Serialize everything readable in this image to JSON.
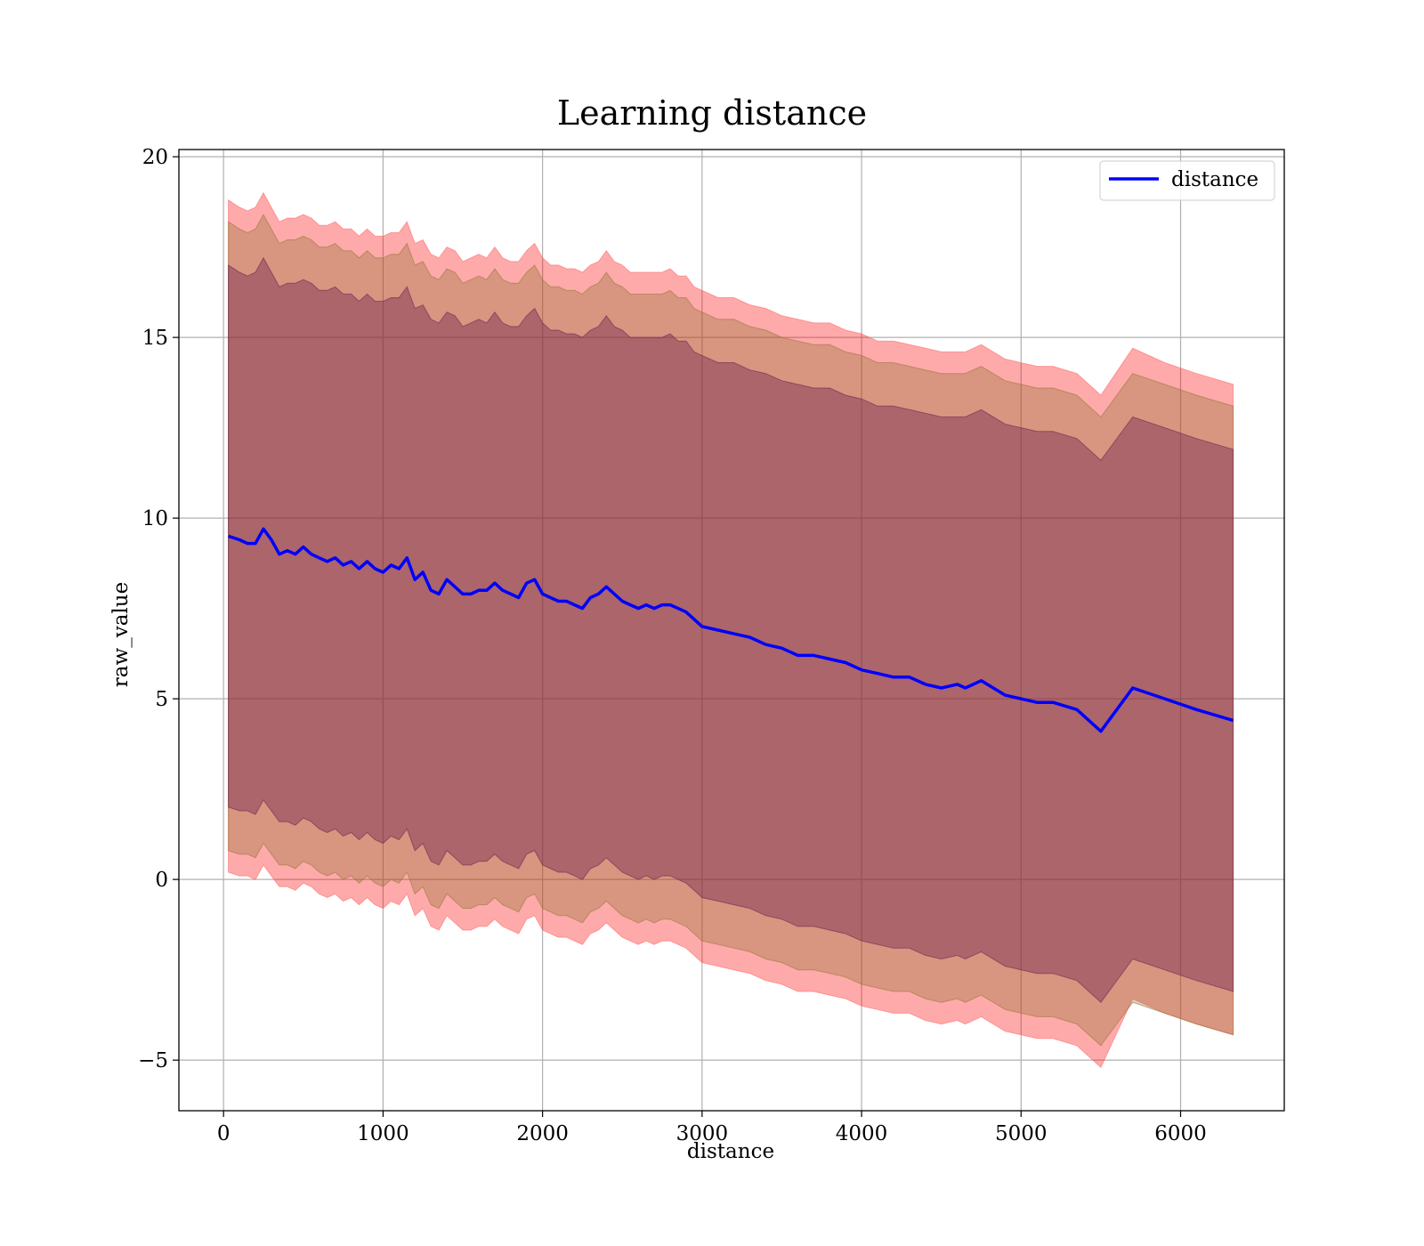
{
  "chart_data": {
    "type": "line",
    "title": "Learning distance",
    "xlabel": "distance",
    "ylabel": "raw_value",
    "xlim": [
      -280,
      6650
    ],
    "ylim": [
      -6.4,
      20.2
    ],
    "xticks": [
      0,
      1000,
      2000,
      3000,
      4000,
      5000,
      6000
    ],
    "yticks": [
      -5,
      0,
      5,
      10,
      15,
      20
    ],
    "grid": true,
    "legend_position": "top-right",
    "colors": {
      "line": "#0000ff",
      "band_outer": "#ff000055",
      "band_middle": "#8b6b2e55",
      "band_inner": "#6b1f4a66",
      "grid": "#b0b0b0"
    },
    "series": [
      {
        "name": "distance",
        "x": [
          30,
          100,
          150,
          200,
          250,
          300,
          350,
          400,
          450,
          500,
          550,
          600,
          650,
          700,
          750,
          800,
          850,
          900,
          950,
          1000,
          1050,
          1100,
          1150,
          1200,
          1250,
          1300,
          1350,
          1400,
          1450,
          1500,
          1550,
          1600,
          1650,
          1700,
          1750,
          1800,
          1850,
          1900,
          1950,
          2000,
          2050,
          2100,
          2150,
          2200,
          2250,
          2300,
          2350,
          2400,
          2450,
          2500,
          2550,
          2600,
          2650,
          2700,
          2750,
          2800,
          2850,
          2900,
          2950,
          3000,
          3100,
          3200,
          3300,
          3400,
          3500,
          3600,
          3700,
          3800,
          3900,
          4000,
          4100,
          4200,
          4300,
          4400,
          4500,
          4600,
          4650,
          4750,
          4900,
          5100,
          5200,
          5350,
          5500,
          5700,
          5900,
          6100,
          6330
        ],
        "y": [
          9.5,
          9.4,
          9.3,
          9.3,
          9.7,
          9.4,
          9.0,
          9.1,
          9.0,
          9.2,
          9.0,
          8.9,
          8.8,
          8.9,
          8.7,
          8.8,
          8.6,
          8.8,
          8.6,
          8.5,
          8.7,
          8.6,
          8.9,
          8.3,
          8.5,
          8.0,
          7.9,
          8.3,
          8.1,
          7.9,
          7.9,
          8.0,
          8.0,
          8.2,
          8.0,
          7.9,
          7.8,
          8.2,
          8.3,
          7.9,
          7.8,
          7.7,
          7.7,
          7.6,
          7.5,
          7.8,
          7.9,
          8.1,
          7.9,
          7.7,
          7.6,
          7.5,
          7.6,
          7.5,
          7.6,
          7.6,
          7.5,
          7.4,
          7.2,
          7.0,
          6.9,
          6.8,
          6.7,
          6.5,
          6.4,
          6.2,
          6.2,
          6.1,
          6.0,
          5.8,
          5.7,
          5.6,
          5.6,
          5.4,
          5.3,
          5.4,
          5.3,
          5.5,
          5.1,
          4.9,
          4.9,
          4.7,
          4.1,
          5.3,
          5.0,
          4.7,
          4.4
        ]
      }
    ],
    "bands": [
      {
        "upper_offsets": [
          9.3,
          9.2,
          9.2,
          9.3,
          9.3,
          9.2,
          9.2,
          9.2,
          9.3,
          9.2,
          9.3,
          9.2,
          9.3,
          9.3,
          9.3,
          9.2,
          9.2,
          9.2,
          9.2,
          9.3,
          9.2,
          9.3,
          9.3,
          9.3,
          9.2,
          9.3,
          9.3,
          9.2,
          9.3,
          9.2,
          9.3,
          9.3,
          9.2,
          9.3,
          9.2,
          9.2,
          9.3,
          9.2,
          9.3,
          9.3,
          9.2,
          9.3,
          9.2,
          9.3,
          9.3,
          9.2,
          9.2,
          9.3,
          9.2,
          9.3,
          9.2,
          9.3,
          9.2,
          9.3,
          9.2,
          9.3,
          9.2,
          9.3,
          9.2,
          9.3,
          9.2,
          9.3,
          9.2,
          9.3,
          9.2,
          9.3,
          9.2,
          9.3,
          9.2,
          9.3,
          9.2,
          9.3,
          9.2,
          9.3,
          9.3,
          9.2,
          9.3,
          9.3,
          9.3,
          9.3,
          9.3,
          9.3,
          9.3,
          9.4,
          9.3,
          9.3,
          9.3
        ],
        "lower_offsets": [
          9.3,
          9.3,
          9.2,
          9.3,
          9.3,
          9.3,
          9.2,
          9.3,
          9.3,
          9.3,
          9.2,
          9.3,
          9.3,
          9.3,
          9.3,
          9.3,
          9.3,
          9.3,
          9.3,
          9.3,
          9.3,
          9.3,
          9.3,
          9.3,
          9.3,
          9.3,
          9.3,
          9.3,
          9.3,
          9.3,
          9.3,
          9.3,
          9.3,
          9.3,
          9.3,
          9.3,
          9.3,
          9.3,
          9.3,
          9.3,
          9.3,
          9.3,
          9.3,
          9.3,
          9.3,
          9.3,
          9.3,
          9.3,
          9.3,
          9.3,
          9.3,
          9.3,
          9.3,
          9.3,
          9.3,
          9.3,
          9.3,
          9.3,
          9.3,
          9.3,
          9.3,
          9.3,
          9.3,
          9.3,
          9.3,
          9.3,
          9.3,
          9.3,
          9.3,
          9.3,
          9.3,
          9.3,
          9.3,
          9.3,
          9.3,
          9.3,
          9.3,
          9.3,
          9.3,
          9.3,
          9.3,
          9.3,
          9.3,
          8.6,
          8.7,
          8.7,
          8.7
        ]
      },
      {
        "upper_offsets": [
          8.7,
          8.6,
          8.6,
          8.7,
          8.7,
          8.6,
          8.6,
          8.6,
          8.7,
          8.6,
          8.7,
          8.6,
          8.7,
          8.7,
          8.7,
          8.6,
          8.6,
          8.6,
          8.6,
          8.7,
          8.6,
          8.7,
          8.7,
          8.7,
          8.6,
          8.7,
          8.7,
          8.6,
          8.7,
          8.6,
          8.7,
          8.7,
          8.6,
          8.7,
          8.6,
          8.6,
          8.7,
          8.6,
          8.7,
          8.7,
          8.6,
          8.7,
          8.6,
          8.7,
          8.7,
          8.6,
          8.6,
          8.7,
          8.6,
          8.7,
          8.6,
          8.7,
          8.6,
          8.7,
          8.6,
          8.7,
          8.6,
          8.7,
          8.6,
          8.7,
          8.6,
          8.7,
          8.6,
          8.7,
          8.6,
          8.7,
          8.6,
          8.7,
          8.6,
          8.7,
          8.6,
          8.7,
          8.6,
          8.7,
          8.7,
          8.6,
          8.7,
          8.7,
          8.7,
          8.7,
          8.7,
          8.7,
          8.7,
          8.7,
          8.7,
          8.7,
          8.7
        ],
        "lower_offsets": [
          8.7,
          8.7,
          8.6,
          8.7,
          8.7,
          8.7,
          8.6,
          8.7,
          8.7,
          8.7,
          8.6,
          8.7,
          8.7,
          8.7,
          8.7,
          8.7,
          8.7,
          8.7,
          8.7,
          8.7,
          8.7,
          8.7,
          8.7,
          8.7,
          8.7,
          8.7,
          8.7,
          8.7,
          8.7,
          8.7,
          8.7,
          8.7,
          8.7,
          8.7,
          8.7,
          8.7,
          8.7,
          8.7,
          8.7,
          8.7,
          8.7,
          8.7,
          8.7,
          8.7,
          8.7,
          8.7,
          8.7,
          8.7,
          8.7,
          8.7,
          8.7,
          8.7,
          8.7,
          8.7,
          8.7,
          8.7,
          8.7,
          8.7,
          8.7,
          8.7,
          8.7,
          8.7,
          8.7,
          8.7,
          8.7,
          8.7,
          8.7,
          8.7,
          8.7,
          8.7,
          8.7,
          8.7,
          8.7,
          8.7,
          8.7,
          8.7,
          8.7,
          8.7,
          8.7,
          8.7,
          8.7,
          8.7,
          8.7,
          8.7,
          8.7,
          8.7,
          8.7
        ]
      },
      {
        "upper_offsets": [
          7.5,
          7.4,
          7.4,
          7.5,
          7.5,
          7.4,
          7.4,
          7.4,
          7.5,
          7.4,
          7.5,
          7.4,
          7.5,
          7.5,
          7.5,
          7.4,
          7.4,
          7.4,
          7.4,
          7.5,
          7.4,
          7.5,
          7.5,
          7.5,
          7.4,
          7.5,
          7.5,
          7.4,
          7.5,
          7.4,
          7.5,
          7.5,
          7.4,
          7.5,
          7.4,
          7.4,
          7.5,
          7.4,
          7.5,
          7.5,
          7.4,
          7.5,
          7.4,
          7.5,
          7.5,
          7.4,
          7.4,
          7.5,
          7.4,
          7.5,
          7.4,
          7.5,
          7.4,
          7.5,
          7.4,
          7.5,
          7.4,
          7.5,
          7.4,
          7.5,
          7.4,
          7.5,
          7.4,
          7.5,
          7.4,
          7.5,
          7.4,
          7.5,
          7.4,
          7.5,
          7.4,
          7.5,
          7.4,
          7.5,
          7.5,
          7.4,
          7.5,
          7.5,
          7.5,
          7.5,
          7.5,
          7.5,
          7.5,
          7.5,
          7.5,
          7.5,
          7.5
        ],
        "lower_offsets": [
          7.5,
          7.5,
          7.4,
          7.5,
          7.5,
          7.5,
          7.4,
          7.5,
          7.5,
          7.5,
          7.4,
          7.5,
          7.5,
          7.5,
          7.5,
          7.5,
          7.5,
          7.5,
          7.5,
          7.5,
          7.5,
          7.5,
          7.5,
          7.5,
          7.5,
          7.5,
          7.5,
          7.5,
          7.5,
          7.5,
          7.5,
          7.5,
          7.5,
          7.5,
          7.5,
          7.5,
          7.5,
          7.5,
          7.5,
          7.5,
          7.5,
          7.5,
          7.5,
          7.5,
          7.5,
          7.5,
          7.5,
          7.5,
          7.5,
          7.5,
          7.5,
          7.5,
          7.5,
          7.5,
          7.5,
          7.5,
          7.5,
          7.5,
          7.5,
          7.5,
          7.5,
          7.5,
          7.5,
          7.5,
          7.5,
          7.5,
          7.5,
          7.5,
          7.5,
          7.5,
          7.5,
          7.5,
          7.5,
          7.5,
          7.5,
          7.5,
          7.5,
          7.5,
          7.5,
          7.5,
          7.5,
          7.5,
          7.5,
          7.5,
          7.5,
          7.5,
          7.5
        ]
      }
    ]
  }
}
